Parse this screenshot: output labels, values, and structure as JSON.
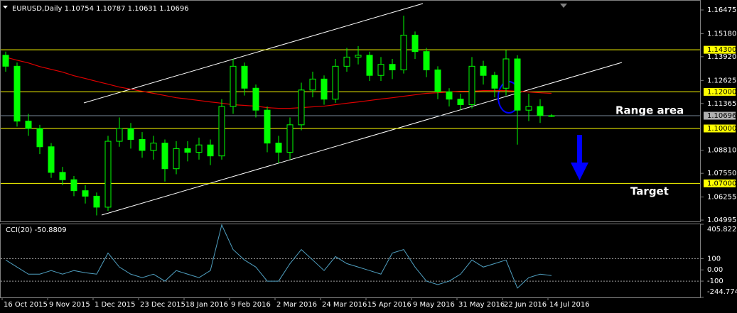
{
  "chart_data": [
    {
      "type": "candlestick",
      "title": "EURUSD,Daily  1.10754 1.10787 1.10631 1.10696",
      "categories": [
        "16 Oct 2015",
        null,
        null,
        null,
        "9 Nov 2015",
        null,
        null,
        null,
        "1 Dec 2015",
        null,
        null,
        null,
        "23 Dec 2015",
        null,
        null,
        null,
        "18 Jan 2016",
        null,
        null,
        null,
        "9 Feb 2016",
        null,
        null,
        null,
        "2 Mar 2016",
        null,
        null,
        null,
        "24 Mar 2016",
        null,
        null,
        null,
        "15 Apr 2016",
        null,
        null,
        null,
        "9 May 2016",
        null,
        null,
        null,
        "31 May 2016",
        null,
        null,
        null,
        "22 Jun 2016",
        null,
        null,
        null,
        "14 Jul 2016"
      ],
      "open": [
        1.14,
        1.134,
        1.104,
        1.1,
        1.09,
        1.076,
        1.072,
        1.066,
        1.063,
        1.057,
        1.093,
        1.1,
        1.094,
        1.088,
        1.092,
        1.078,
        1.089,
        1.087,
        1.091,
        1.085,
        1.112,
        1.134,
        1.122,
        1.11,
        1.092,
        1.087,
        1.102,
        1.121,
        1.127,
        1.116,
        1.134,
        1.139,
        1.14,
        1.129,
        1.135,
        1.132,
        1.151,
        1.142,
        1.132,
        1.12,
        1.116,
        1.113,
        1.134,
        1.129,
        1.122,
        1.138,
        1.11,
        1.112,
        1.107
      ],
      "high": [
        1.142,
        1.136,
        1.108,
        1.102,
        1.092,
        1.079,
        1.074,
        1.069,
        1.065,
        1.096,
        1.106,
        1.103,
        1.098,
        1.096,
        1.094,
        1.093,
        1.093,
        1.095,
        1.094,
        1.116,
        1.138,
        1.136,
        1.124,
        1.112,
        1.096,
        1.106,
        1.125,
        1.131,
        1.129,
        1.138,
        1.144,
        1.145,
        1.142,
        1.139,
        1.138,
        1.1616,
        1.153,
        1.144,
        1.134,
        1.122,
        1.119,
        1.139,
        1.137,
        1.131,
        1.1428,
        1.14,
        1.119,
        1.116,
        1.10787
      ],
      "low": [
        1.131,
        1.101,
        1.096,
        1.086,
        1.073,
        1.069,
        1.063,
        1.059,
        1.0525,
        1.055,
        1.09,
        1.089,
        1.084,
        1.083,
        1.071,
        1.075,
        1.082,
        1.083,
        1.08,
        1.083,
        1.108,
        1.118,
        1.106,
        1.087,
        1.081,
        1.083,
        1.099,
        1.117,
        1.113,
        1.114,
        1.131,
        1.135,
        1.126,
        1.126,
        1.127,
        1.13,
        1.138,
        1.128,
        1.116,
        1.112,
        1.11,
        1.111,
        1.124,
        1.117,
        1.118,
        1.0912,
        1.104,
        1.103,
        1.10631
      ],
      "close": [
        1.134,
        1.104,
        1.1,
        1.09,
        1.076,
        1.072,
        1.066,
        1.063,
        1.057,
        1.093,
        1.1,
        1.094,
        1.088,
        1.092,
        1.078,
        1.089,
        1.087,
        1.091,
        1.085,
        1.112,
        1.134,
        1.122,
        1.11,
        1.092,
        1.087,
        1.102,
        1.121,
        1.127,
        1.116,
        1.134,
        1.139,
        1.14,
        1.129,
        1.135,
        1.132,
        1.151,
        1.142,
        1.132,
        1.12,
        1.116,
        1.113,
        1.134,
        1.129,
        1.122,
        1.138,
        1.11,
        1.112,
        1.107,
        1.10696
      ],
      "color": "#00ff00",
      "ma": {
        "color": "#e00000",
        "values": [
          1.1389,
          1.1373,
          1.1358,
          1.1338,
          1.1323,
          1.1308,
          1.1288,
          1.1273,
          1.1257,
          1.1242,
          1.1226,
          1.1215,
          1.1203,
          1.1192,
          1.118,
          1.1168,
          1.1161,
          1.1153,
          1.1145,
          1.1138,
          1.113,
          1.1126,
          1.1122,
          1.1114,
          1.111,
          1.111,
          1.1114,
          1.1118,
          1.1122,
          1.113,
          1.1138,
          1.1145,
          1.1153,
          1.1161,
          1.1168,
          1.1176,
          1.1184,
          1.1192,
          1.1195,
          1.1199,
          1.1203,
          1.1203,
          1.1207,
          1.1207,
          1.1207,
          1.1203,
          1.1199,
          1.1195,
          1.1192
        ]
      },
      "levels": [
        {
          "value": 1.143,
          "label": "1.14300"
        },
        {
          "value": 1.12,
          "label": "1.12000"
        },
        {
          "value": 1.1,
          "label": "1.10000"
        },
        {
          "value": 1.07,
          "label": "1.07000"
        }
      ],
      "level_color": "#ffff00",
      "last_price": {
        "value": 1.10696,
        "label": "1.10696"
      },
      "last_price_color": "#b0b0b0",
      "ylim": [
        1.0492,
        1.1698
      ],
      "yticks": [
        1.16475,
        {
          "value": 1.1518,
          "label": "1.15180"
        },
        {
          "value": 1.1392,
          "label": "1.13920"
        },
        1.12625,
        1.11365,
        {
          "value": 1.0881,
          "label": "1.08810"
        },
        {
          "value": 1.0755,
          "label": "1.07550"
        },
        1.06255,
        1.04995
      ],
      "annotations": [
        "Range area",
        "Target"
      ]
    },
    {
      "type": "line",
      "title": "CCI(20) -50.8809",
      "color": "#4f9fc0",
      "values": [
        88,
        25,
        -38,
        -38,
        -6,
        -38,
        -6,
        -25,
        -38,
        150,
        25,
        -38,
        -69,
        -38,
        -100,
        -6,
        -38,
        -69,
        -6,
        400,
        181,
        88,
        25,
        -100,
        -100,
        56,
        181,
        88,
        -6,
        119,
        56,
        25,
        -6,
        -38,
        150,
        181,
        25,
        -100,
        -131,
        -100,
        -38,
        88,
        25,
        56,
        88,
        -162,
        -69,
        -38,
        -50.8809
      ],
      "levels": [
        100,
        -100
      ],
      "ylim": [
        -244.7742,
        405.8221
      ],
      "yticks": [
        405.8221,
        100,
        {
          "value": 0,
          "label": "0.00"
        },
        -100,
        -244.7742
      ]
    }
  ]
}
